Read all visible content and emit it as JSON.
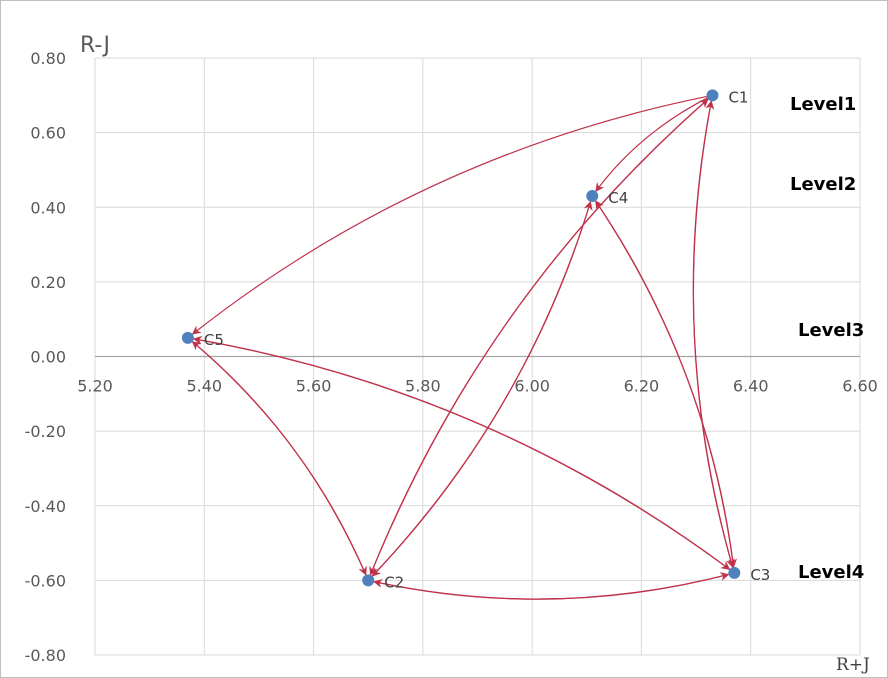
{
  "chart_data": {
    "type": "scatter",
    "ylabel": "R-J",
    "xlabel": "R+J",
    "xlim": [
      5.2,
      6.6
    ],
    "ylim": [
      -0.8,
      0.8
    ],
    "x_ticks": [
      "5.20",
      "5.40",
      "5.60",
      "5.80",
      "6.00",
      "6.20",
      "6.40",
      "6.60"
    ],
    "y_ticks": [
      "0.80",
      "0.60",
      "0.40",
      "0.20",
      "0.00",
      "-0.20",
      "-0.40",
      "-0.60",
      "-0.80"
    ],
    "grid": true,
    "point_color": "#4f81bd",
    "arrow_color": "#c0314a",
    "points": [
      {
        "label": "C1",
        "x": 6.33,
        "y": 0.7
      },
      {
        "label": "C2",
        "x": 5.7,
        "y": -0.6
      },
      {
        "label": "C3",
        "x": 6.37,
        "y": -0.58
      },
      {
        "label": "C4",
        "x": 6.11,
        "y": 0.43
      },
      {
        "label": "C5",
        "x": 5.37,
        "y": 0.05
      }
    ],
    "arrows": [
      {
        "from": "C1",
        "to": "C5"
      },
      {
        "from": "C1",
        "to": "C4"
      },
      {
        "from": "C1",
        "to": "C3"
      },
      {
        "from": "C1",
        "to": "C2"
      },
      {
        "from": "C4",
        "to": "C2"
      },
      {
        "from": "C4",
        "to": "C3"
      },
      {
        "from": "C5",
        "to": "C2"
      },
      {
        "from": "C5",
        "to": "C3"
      },
      {
        "from": "C3",
        "to": "C5"
      },
      {
        "from": "C3",
        "to": "C2"
      },
      {
        "from": "C2",
        "to": "C3"
      },
      {
        "from": "C2",
        "to": "C4"
      },
      {
        "from": "C2",
        "to": "C1"
      },
      {
        "from": "C2",
        "to": "C5"
      },
      {
        "from": "C3",
        "to": "C4"
      },
      {
        "from": "C3",
        "to": "C1"
      }
    ],
    "levels": [
      "Level1",
      "Level2",
      "Level3",
      "Level4"
    ]
  }
}
